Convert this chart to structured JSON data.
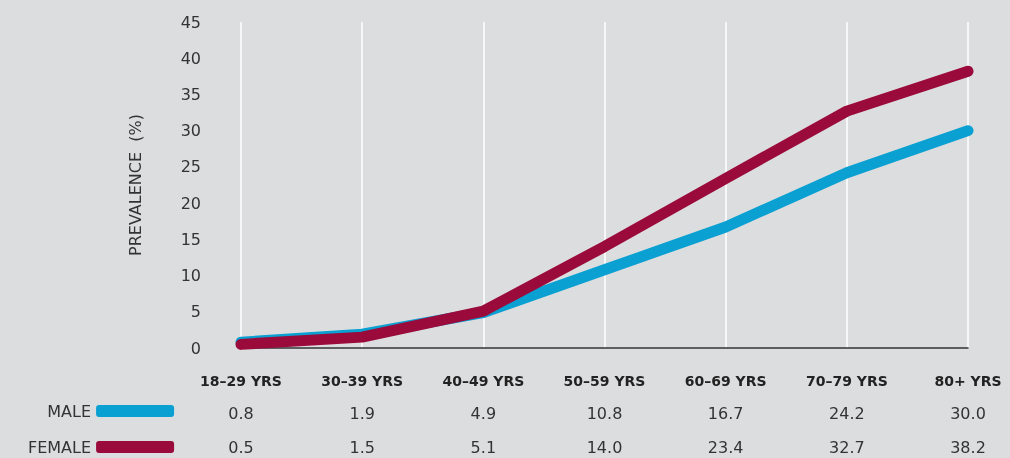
{
  "chart_data": {
    "type": "line",
    "ylabel": "PREVALENCE  (%)",
    "categories": [
      "18–29 YRS",
      "30–39 YRS",
      "40–49 YRS",
      "50–59 YRS",
      "60–69 YRS",
      "70–79 YRS",
      "80+ YRS"
    ],
    "series": [
      {
        "name": "MALE",
        "color": "#0aa0d2",
        "values": [
          0.8,
          1.9,
          4.9,
          10.8,
          16.7,
          24.2,
          30.0
        ],
        "value_labels": [
          "0.8",
          "1.9",
          "4.9",
          "10.8",
          "16.7",
          "24.2",
          "30.0"
        ]
      },
      {
        "name": "FEMALE",
        "color": "#9a0a3a",
        "values": [
          0.5,
          1.5,
          5.1,
          14.0,
          23.4,
          32.7,
          38.2
        ],
        "value_labels": [
          "0.5",
          "1.5",
          "5.1",
          "14.0",
          "23.4",
          "32.7",
          "38.2"
        ]
      }
    ],
    "ylim": [
      0,
      45
    ],
    "yticks": [
      0,
      5,
      10,
      15,
      20,
      25,
      30,
      35,
      40,
      45
    ],
    "grid": "x",
    "legend": "bottom left",
    "marker": "none",
    "line_style": "solid"
  }
}
